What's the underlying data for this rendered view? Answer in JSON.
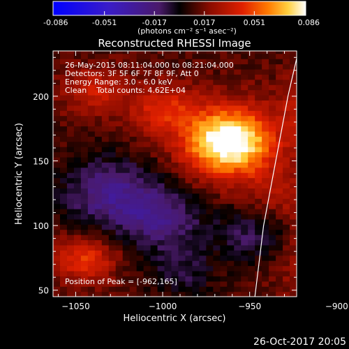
{
  "colorbar": {
    "tick_labels": [
      "-0.086",
      "-0.051",
      "-0.017",
      "0.017",
      "0.051",
      "0.086"
    ],
    "unit_label": "(photons cm⁻² s⁻¹ asec⁻²)",
    "range": [
      -0.086,
      0.086
    ]
  },
  "chart_data": {
    "type": "heatmap",
    "title": "Reconstructed RHESSI Image",
    "xlabel": "Heliocentric X (arcsec)",
    "ylabel": "Heliocentric Y (arcsec)",
    "xlim": [
      -1063,
      -923
    ],
    "ylim": [
      45,
      235
    ],
    "x_ticks": [
      -1050,
      -1000,
      -950,
      -900
    ],
    "x_tick_labels": [
      "−1050",
      "−1000",
      "−950",
      "−900"
    ],
    "y_ticks": [
      50,
      100,
      150,
      200
    ],
    "y_tick_labels": [
      "50",
      "100",
      "150",
      "200"
    ],
    "grid": false,
    "colormap": "red-temperature with blue negatives",
    "info_lines": [
      "26-May-2015 08:11:04.000 to 08:21:04.000",
      "Detectors: 3F 5F 6F 7F 8F 9F, Att 0",
      "Energy Range: 3.0 - 6.0 keV",
      "Clean    Total counts: 4.62E+04"
    ],
    "peak_label": "Position of Peak = [-962,165]",
    "peak": [
      -962,
      165
    ],
    "limb_curve": [
      [
        -947,
        45
      ],
      [
        -942,
        100
      ],
      [
        -935,
        150
      ],
      [
        -928,
        200
      ],
      [
        -922,
        235
      ]
    ],
    "sources": [
      {
        "x": -962,
        "y": 165,
        "sigma": 18,
        "amp": 0.086
      },
      {
        "x": -1000,
        "y": 190,
        "sigma": 14,
        "amp": 0.03
      },
      {
        "x": -1040,
        "y": 205,
        "sigma": 12,
        "amp": 0.025
      },
      {
        "x": -910,
        "y": 165,
        "sigma": 8,
        "amp": 0.045
      },
      {
        "x": -910,
        "y": 195,
        "sigma": 14,
        "amp": 0.032
      },
      {
        "x": -1045,
        "y": 75,
        "sigma": 12,
        "amp": 0.035
      },
      {
        "x": -900,
        "y": 70,
        "sigma": 18,
        "amp": 0.035
      },
      {
        "x": -930,
        "y": 120,
        "sigma": 18,
        "amp": 0.018
      }
    ],
    "negative_regions": [
      {
        "x": -1030,
        "y": 125,
        "sigma": 20,
        "amp": -0.035
      },
      {
        "x": -1000,
        "y": 105,
        "sigma": 16,
        "amp": -0.03
      },
      {
        "x": -948,
        "y": 95,
        "sigma": 16,
        "amp": -0.025
      },
      {
        "x": -990,
        "y": 65,
        "sigma": 14,
        "amp": -0.02
      }
    ],
    "background": 0.012
  },
  "footer": {
    "timestamp": "26-Oct-2017 20:05"
  }
}
